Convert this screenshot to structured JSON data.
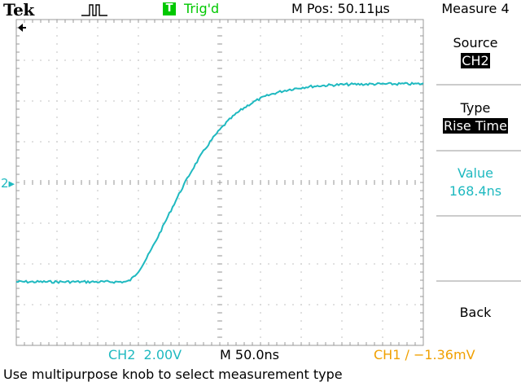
{
  "header": {
    "brand": "Tek",
    "trigger_icon_letter": "T",
    "trigger_status": "Trig'd",
    "m_pos": "M Pos: 50.11µs",
    "menu_title": "Measure 4"
  },
  "side_menu": {
    "source_label": "Source",
    "source_value": "CH2",
    "type_label": "Type",
    "type_value": "Rise Time",
    "value_label": "Value",
    "value_value": "168.4ns",
    "back_label": "Back"
  },
  "footer": {
    "ch2_scale": "CH2  2.00V",
    "timebase": "M 50.0ns",
    "ch1_trigger": "CH1 ∕ −1.36mV",
    "status_message": "Use multipurpose knob to select measurement type"
  },
  "channel_marker": "2▸",
  "colors": {
    "trace": "#1fb9c0",
    "trigger_green": "#00c800",
    "ch1_orange": "#f0a000"
  },
  "icons": [
    "trigger-pulse-icon",
    "trigger-position-arrow-icon"
  ]
}
